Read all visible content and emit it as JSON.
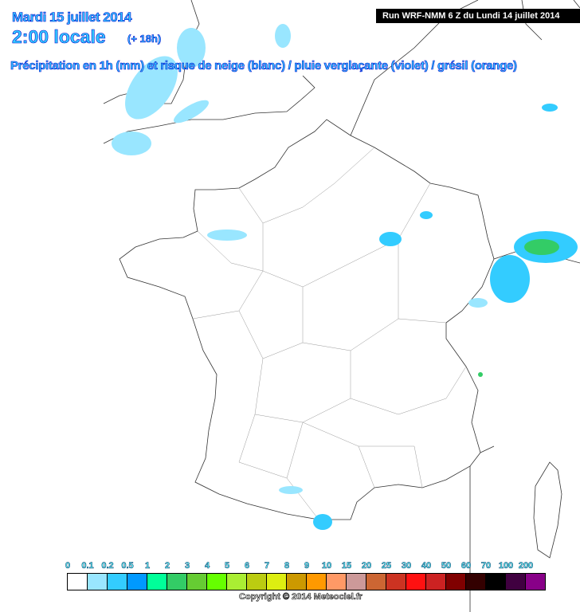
{
  "header": {
    "date": "Mardi 15 juillet 2014",
    "time": "2:00 locale",
    "lead": "(+ 18h)",
    "title": "Précipitation en 1h (mm) et risque de neige (blanc) / pluie verglaçante (violet) / grésil (orange)",
    "run": "Run WRF-NMM 6 Z du Lundi 14 juillet 2014"
  },
  "legend": {
    "labels": [
      "0",
      "0.1",
      "0.2",
      "0.5",
      "1",
      "2",
      "3",
      "4",
      "5",
      "6",
      "7",
      "8",
      "9",
      "10",
      "15",
      "20",
      "25",
      "30",
      "40",
      "50",
      "60",
      "70",
      "100",
      "200"
    ],
    "colors": [
      "#ffffff",
      "#99e6ff",
      "#33ccff",
      "#0099ff",
      "#00ff99",
      "#33cc66",
      "#66cc33",
      "#66ff00",
      "#aaee33",
      "#bbcc11",
      "#ddee11",
      "#cc9900",
      "#ff9900",
      "#ff9966",
      "#cc9999",
      "#cc6633",
      "#cc3322",
      "#ff1111",
      "#cc2222",
      "#800000",
      "#330000",
      "#000000",
      "#400040",
      "#880088"
    ]
  },
  "copyright": "Copyright © 2014 Meteociel.fr"
}
